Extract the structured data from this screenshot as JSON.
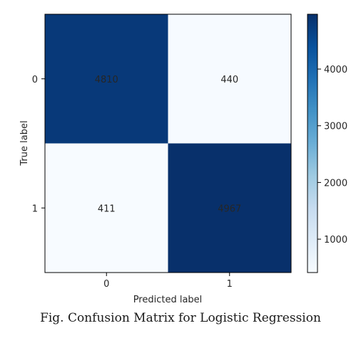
{
  "chart_data": {
    "type": "heatmap",
    "title": "",
    "xlabel": "Predicted label",
    "ylabel": "True label",
    "x_categories": [
      "0",
      "1"
    ],
    "y_categories": [
      "0",
      "1"
    ],
    "values": [
      [
        4810,
        440
      ],
      [
        411,
        4967
      ]
    ],
    "colormap": "Blues",
    "color_range": [
      411,
      4967
    ],
    "colorbar": {
      "ticks": [
        1000,
        2000,
        3000,
        4000
      ],
      "tick_labels": [
        "1000",
        "2000",
        "3000",
        "4000"
      ],
      "placement": "right"
    },
    "grid": false
  },
  "caption": "Fig. Confusion Matrix for Logistic Regression",
  "colors": {
    "dark_cell": "#08306b",
    "light_cell": "#f7fbff",
    "text_on_dark": "#f7fbff",
    "text_on_light": "#08306b"
  }
}
